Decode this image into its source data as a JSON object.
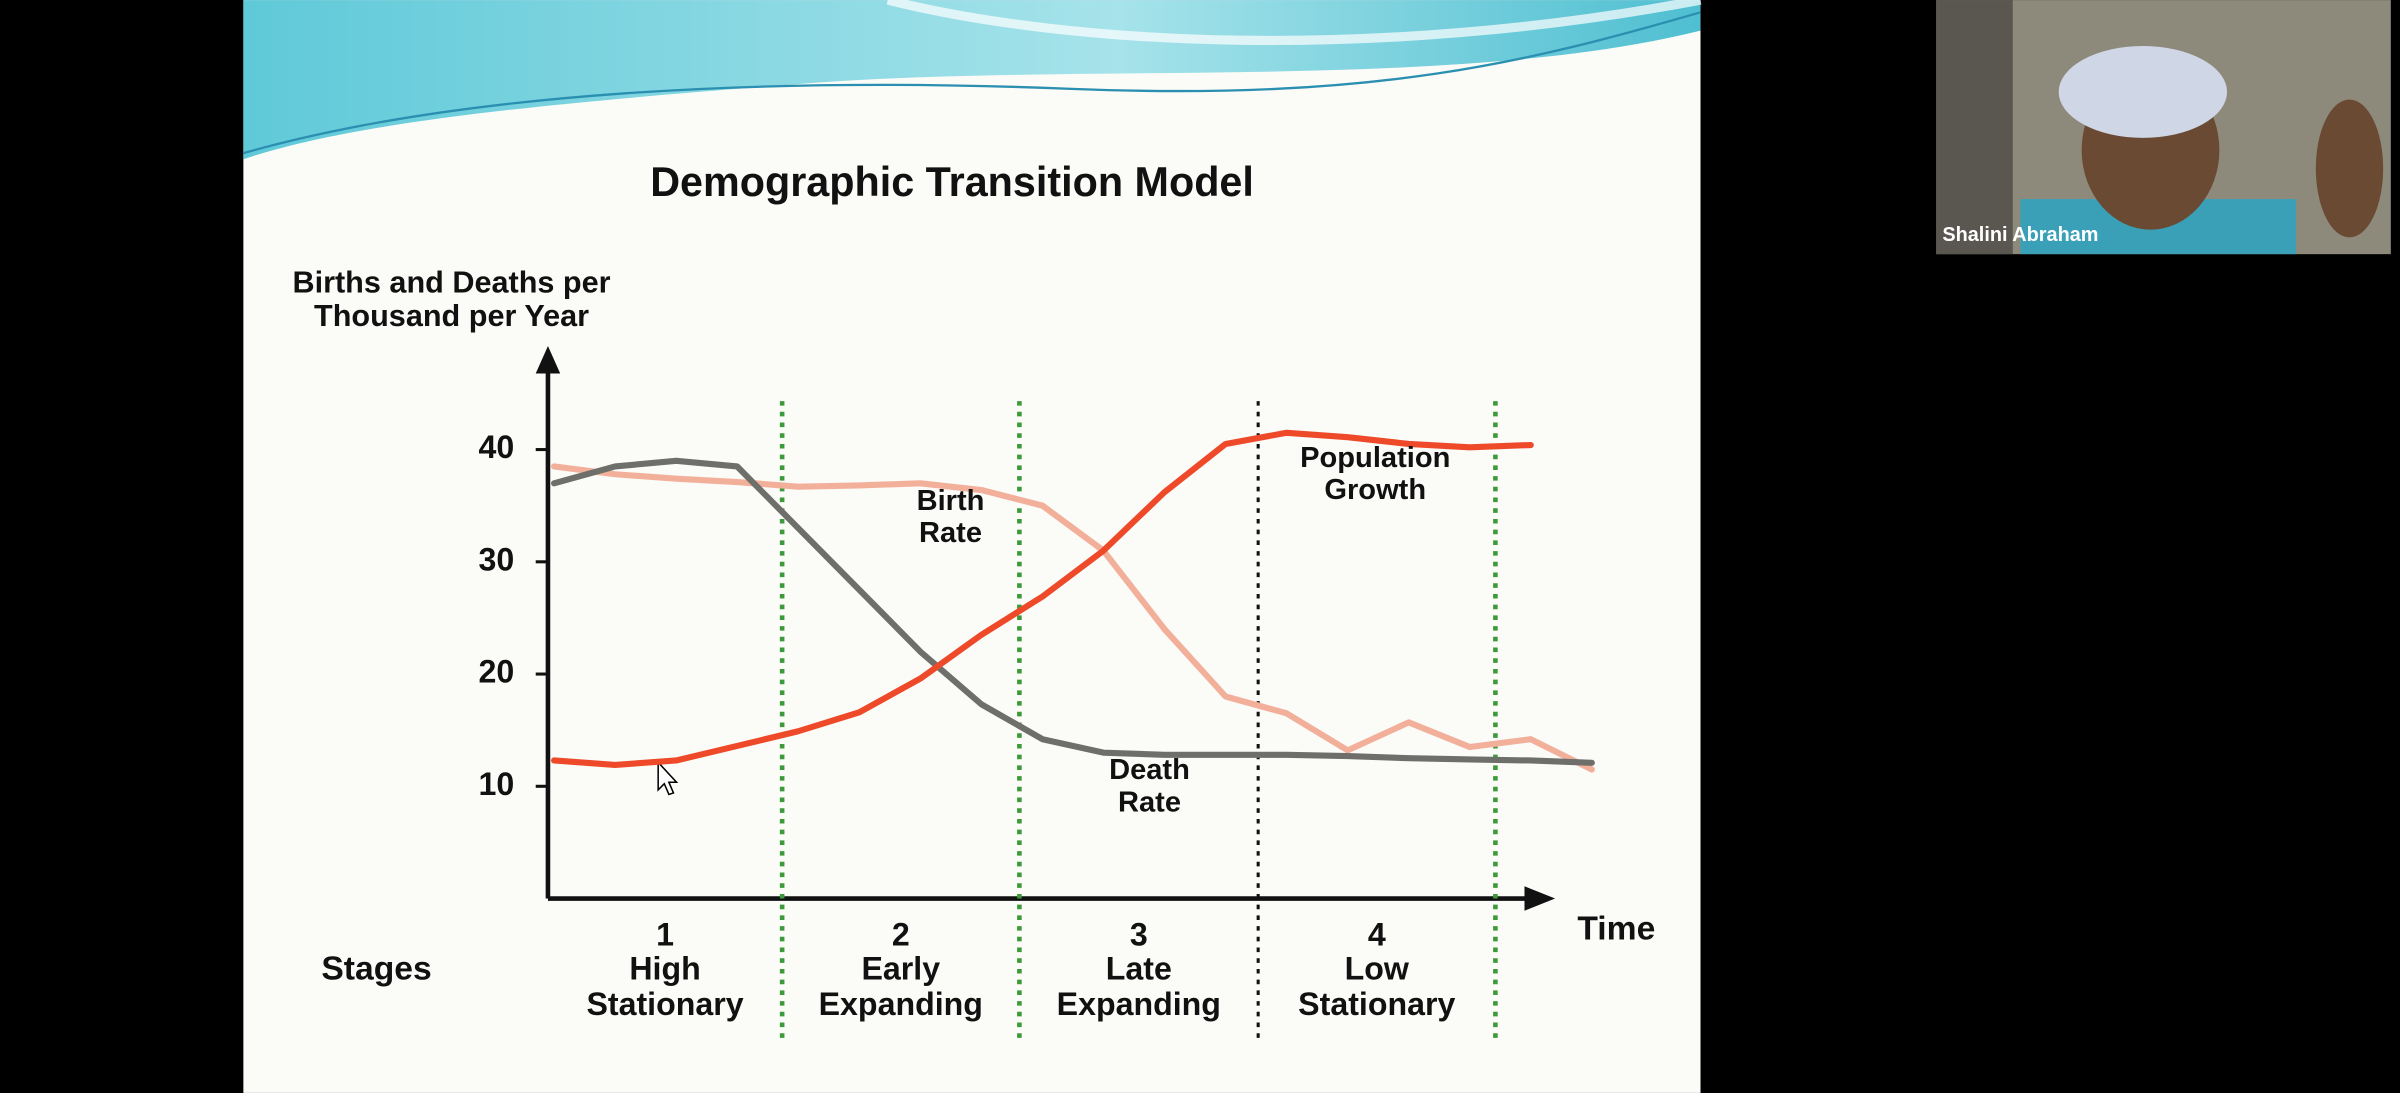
{
  "chart_data": {
    "type": "line",
    "title": "Demographic Transition Model",
    "y_label": "Births and Deaths per Thousand per Year",
    "x_label": "Time",
    "stages_label": "Stages",
    "stages": [
      {
        "number": "1",
        "name": "High Stationary"
      },
      {
        "number": "2",
        "name": "Early Expanding"
      },
      {
        "number": "3",
        "name": "Late Expanding"
      },
      {
        "number": "4",
        "name": "Low Stationary"
      }
    ],
    "ylim": [
      0,
      48
    ],
    "yticks": [
      10,
      20,
      30,
      40
    ],
    "categories": [
      null,
      null,
      null,
      null,
      null,
      null,
      null,
      null,
      null,
      null,
      null,
      null,
      null,
      null,
      null,
      null,
      null,
      null
    ],
    "series": [
      {
        "name": "Birth Rate",
        "color": "#f2b09a",
        "values": [
          38.5,
          37.8,
          37.4,
          37.1,
          36.7,
          36.8,
          37,
          36.4,
          35,
          31,
          24,
          18,
          16.5,
          13.2,
          15.7,
          13.5,
          14.2,
          11.5
        ]
      },
      {
        "name": "Death Rate",
        "color": "#6e6e6a",
        "values": [
          37,
          38.5,
          39,
          38.5,
          33,
          27.5,
          22,
          17.3,
          14.2,
          13,
          12.8,
          12.8,
          12.8,
          12.7,
          12.5,
          12.4,
          12.3,
          12.1
        ]
      },
      {
        "name": "Population Growth",
        "color": "#ee4a2a",
        "values": [
          12.3,
          11.9,
          12.3,
          13.6,
          14.9,
          16.6,
          19.6,
          23.5,
          26.9,
          31,
          36.2,
          40.5,
          41.5,
          41.1,
          40.5,
          40.2,
          40.4,
          null
        ]
      }
    ]
  },
  "participant": {
    "name": "Shalini Abraham"
  }
}
